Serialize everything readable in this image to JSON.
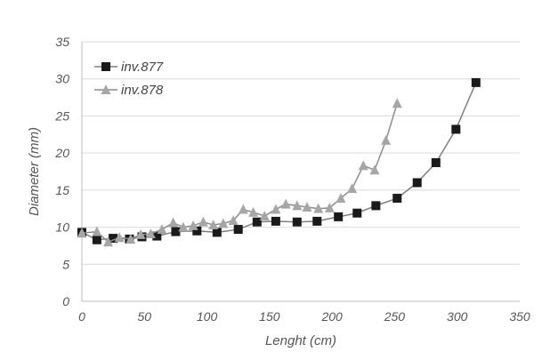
{
  "chart_data": {
    "type": "scatter",
    "xlabel": "Lenght (cm)",
    "ylabel": "Diameter (mm)",
    "xlim": [
      0,
      350
    ],
    "ylim": [
      0,
      35
    ],
    "xticks": [
      0,
      50,
      100,
      150,
      200,
      250,
      300,
      350
    ],
    "yticks": [
      0,
      5,
      10,
      15,
      20,
      25,
      30,
      35
    ],
    "grid": "horizontal",
    "legend_position": "top-left",
    "series": [
      {
        "name": "inv.877",
        "marker": "square",
        "color": "#1a1a1a",
        "line_color": "#7f7f7f",
        "x": [
          0,
          12,
          25,
          38,
          48,
          60,
          75,
          92,
          108,
          125,
          140,
          155,
          172,
          188,
          205,
          220,
          235,
          252,
          268,
          283,
          299,
          315
        ],
        "y": [
          9.3,
          8.3,
          8.5,
          8.4,
          8.7,
          8.8,
          9.4,
          9.5,
          9.3,
          9.7,
          10.7,
          10.8,
          10.7,
          10.8,
          11.4,
          11.9,
          12.9,
          13.9,
          16.0,
          18.7,
          23.2,
          29.5
        ]
      },
      {
        "name": "inv.878",
        "marker": "triangle",
        "color": "#a6a6a6",
        "line_color": "#8c8c8c",
        "x": [
          0,
          12,
          21,
          30,
          39,
          47,
          55,
          64,
          73,
          81,
          89,
          97,
          105,
          113,
          121,
          129,
          137,
          146,
          155,
          163,
          172,
          180,
          189,
          198,
          207,
          216,
          225,
          234,
          243,
          252
        ],
        "y": [
          9.2,
          9.4,
          8.0,
          8.6,
          8.4,
          9.0,
          9.1,
          9.7,
          10.6,
          10.0,
          10.2,
          10.7,
          10.3,
          10.5,
          10.9,
          12.4,
          12.0,
          11.5,
          12.4,
          13.1,
          12.9,
          12.7,
          12.5,
          12.6,
          13.9,
          15.2,
          18.3,
          17.7,
          21.7,
          26.7
        ]
      }
    ]
  }
}
